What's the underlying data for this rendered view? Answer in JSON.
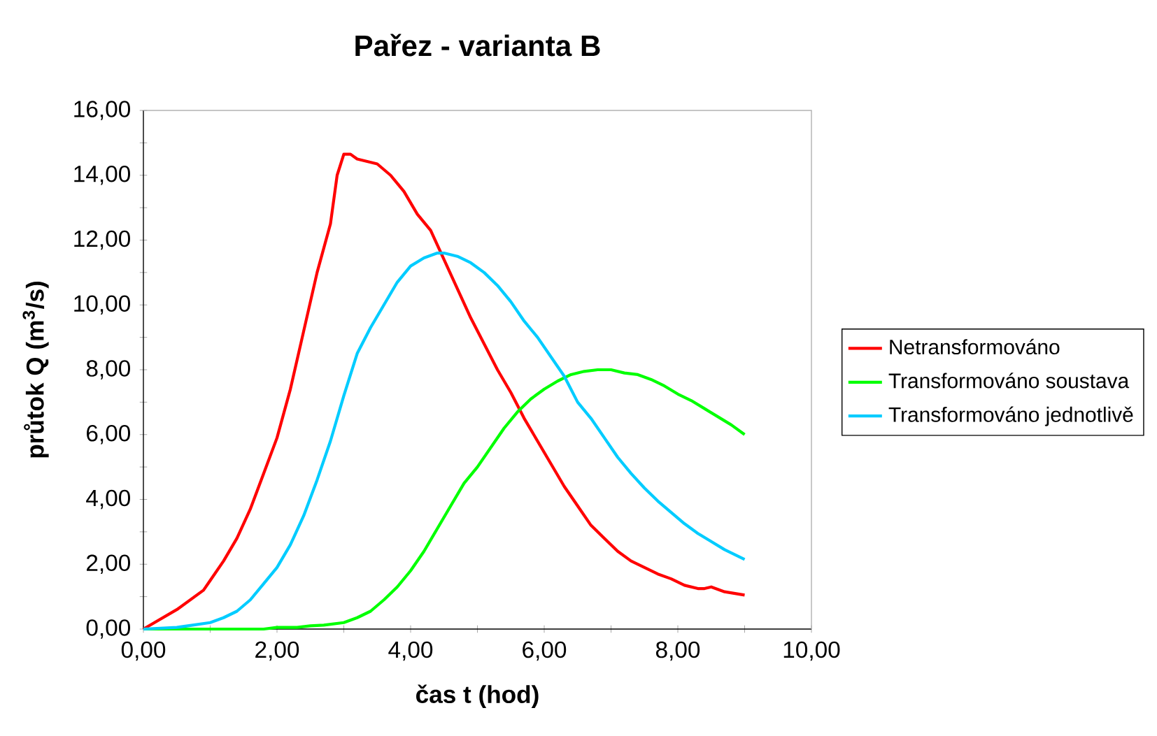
{
  "chart_data": {
    "type": "line",
    "title": "Pařez - varianta B",
    "xlabel": "čas t (hod)",
    "ylabel": "průtok Q (m$^{3}$/s)",
    "xlim": [
      0,
      10
    ],
    "ylim": [
      0,
      16
    ],
    "xticks": [
      {
        "value": 0,
        "label": "0,00"
      },
      {
        "value": 1,
        "label": null
      },
      {
        "value": 2,
        "label": "2,00"
      },
      {
        "value": 3,
        "label": null
      },
      {
        "value": 4,
        "label": "4,00"
      },
      {
        "value": 5,
        "label": null
      },
      {
        "value": 6,
        "label": "6,00"
      },
      {
        "value": 7,
        "label": null
      },
      {
        "value": 8,
        "label": "8,00"
      },
      {
        "value": 9,
        "label": null
      },
      {
        "value": 10,
        "label": "10,00"
      }
    ],
    "yticks": [
      {
        "value": 0,
        "label": "0,00"
      },
      {
        "value": 1,
        "label": null
      },
      {
        "value": 2,
        "label": "2,00"
      },
      {
        "value": 3,
        "label": null
      },
      {
        "value": 4,
        "label": "4,00"
      },
      {
        "value": 5,
        "label": null
      },
      {
        "value": 6,
        "label": "6,00"
      },
      {
        "value": 7,
        "label": null
      },
      {
        "value": 8,
        "label": "8,00"
      },
      {
        "value": 9,
        "label": null
      },
      {
        "value": 10,
        "label": "10,00"
      },
      {
        "value": 11,
        "label": null
      },
      {
        "value": 12,
        "label": "12,00"
      },
      {
        "value": 13,
        "label": null
      },
      {
        "value": 14,
        "label": "14,00"
      },
      {
        "value": 15,
        "label": null
      },
      {
        "value": 16,
        "label": "16,00"
      }
    ],
    "grid": false,
    "legend": "right",
    "marker": "none",
    "line_style": "solid",
    "series": [
      {
        "name": "Netransformováno",
        "color": "#ff0000",
        "x": [
          0,
          0.5,
          0.9,
          1.0,
          1.2,
          1.4,
          1.6,
          1.8,
          2.0,
          2.2,
          2.4,
          2.6,
          2.8,
          2.9,
          3.0,
          3.1,
          3.2,
          3.4,
          3.5,
          3.7,
          3.9,
          4.1,
          4.3,
          4.5,
          4.7,
          4.9,
          5.1,
          5.3,
          5.5,
          5.7,
          5.9,
          6.1,
          6.3,
          6.5,
          6.7,
          6.9,
          7.1,
          7.3,
          7.5,
          7.7,
          7.9,
          8.1,
          8.3,
          8.4,
          8.5,
          8.7,
          9.0
        ],
        "values": [
          0,
          0.6,
          1.2,
          1.5,
          2.1,
          2.8,
          3.7,
          4.8,
          5.9,
          7.4,
          9.2,
          11.0,
          12.5,
          14.0,
          14.65,
          14.65,
          14.5,
          14.4,
          14.35,
          14.0,
          13.5,
          12.8,
          12.3,
          11.4,
          10.5,
          9.6,
          8.8,
          8.0,
          7.3,
          6.5,
          5.8,
          5.1,
          4.4,
          3.8,
          3.2,
          2.8,
          2.4,
          2.1,
          1.9,
          1.7,
          1.55,
          1.35,
          1.25,
          1.25,
          1.3,
          1.15,
          1.05
        ]
      },
      {
        "name": "Transformováno soustava",
        "color": "#00ff00",
        "x": [
          0,
          1.8,
          2.0,
          2.3,
          2.5,
          2.7,
          3.0,
          3.2,
          3.4,
          3.6,
          3.8,
          4.0,
          4.2,
          4.4,
          4.6,
          4.8,
          5.0,
          5.2,
          5.4,
          5.6,
          5.8,
          6.0,
          6.2,
          6.4,
          6.6,
          6.8,
          7.0,
          7.2,
          7.4,
          7.6,
          7.8,
          8.0,
          8.2,
          8.4,
          8.6,
          8.8,
          9.0
        ],
        "values": [
          0,
          0,
          0.05,
          0.05,
          0.1,
          0.12,
          0.2,
          0.35,
          0.55,
          0.9,
          1.3,
          1.8,
          2.4,
          3.1,
          3.8,
          4.5,
          5.0,
          5.6,
          6.2,
          6.7,
          7.1,
          7.4,
          7.65,
          7.85,
          7.95,
          8.0,
          8.0,
          7.9,
          7.85,
          7.7,
          7.5,
          7.25,
          7.05,
          6.8,
          6.55,
          6.3,
          6.0
        ]
      },
      {
        "name": "Transformováno jednotlivě",
        "color": "#00ccff",
        "x": [
          0,
          0.5,
          1.0,
          1.2,
          1.4,
          1.6,
          1.8,
          2.0,
          2.2,
          2.4,
          2.6,
          2.8,
          3.0,
          3.2,
          3.4,
          3.6,
          3.8,
          4.0,
          4.2,
          4.4,
          4.5,
          4.7,
          4.9,
          5.1,
          5.3,
          5.5,
          5.7,
          5.9,
          6.1,
          6.3,
          6.5,
          6.7,
          6.9,
          7.1,
          7.3,
          7.5,
          7.7,
          7.9,
          8.1,
          8.3,
          8.5,
          8.7,
          9.0
        ],
        "values": [
          0,
          0.05,
          0.2,
          0.35,
          0.55,
          0.9,
          1.4,
          1.9,
          2.6,
          3.5,
          4.6,
          5.8,
          7.2,
          8.5,
          9.3,
          10.0,
          10.7,
          11.2,
          11.45,
          11.6,
          11.6,
          11.5,
          11.3,
          11.0,
          10.6,
          10.1,
          9.5,
          9.0,
          8.4,
          7.8,
          7.0,
          6.5,
          5.9,
          5.3,
          4.8,
          4.35,
          3.95,
          3.6,
          3.25,
          2.95,
          2.7,
          2.45,
          2.15
        ]
      }
    ]
  }
}
